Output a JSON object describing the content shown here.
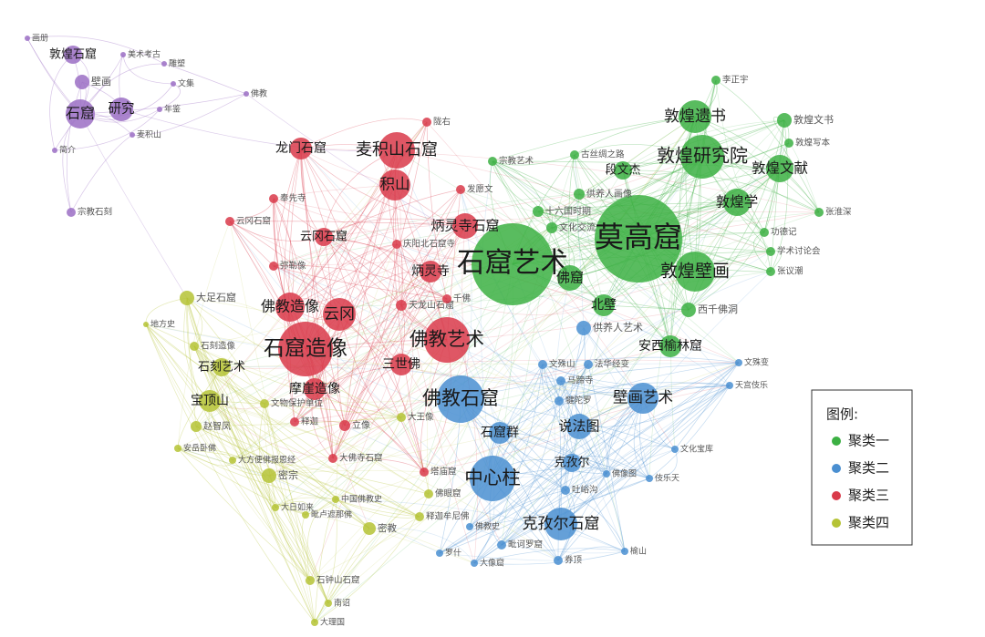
{
  "clusters": [
    {
      "name": "聚类一",
      "color": "#3cb043",
      "nodes": [
        {
          "label": "莫高窟"
        },
        {
          "label": "石窟艺术"
        },
        {
          "label": "敦煌研究院"
        },
        {
          "label": "敦煌遗书"
        },
        {
          "label": "敦煌壁画"
        },
        {
          "label": "敦煌文献"
        },
        {
          "label": "敦煌学"
        },
        {
          "label": "敦煌文书"
        },
        {
          "label": "敦煌写本"
        },
        {
          "label": "段文杰"
        },
        {
          "label": "北壁"
        },
        {
          "label": "佛窟"
        },
        {
          "label": "西千佛洞"
        },
        {
          "label": "安西榆林窟"
        },
        {
          "label": "供养人画像"
        },
        {
          "label": "古丝绸之路"
        },
        {
          "label": "宗教艺术"
        },
        {
          "label": "十六国时期"
        },
        {
          "label": "文化交流"
        },
        {
          "label": "李正宇"
        },
        {
          "label": "张淮深"
        },
        {
          "label": "功德记"
        },
        {
          "label": "学术讨论会"
        },
        {
          "label": "张议潮"
        }
      ]
    },
    {
      "name": "聚类二",
      "color": "#4a8fd1",
      "nodes": [
        {
          "label": "中心柱"
        },
        {
          "label": "佛教石窟"
        },
        {
          "label": "壁画艺术"
        },
        {
          "label": "克孜尔石窟"
        },
        {
          "label": "石窟群"
        },
        {
          "label": "说法图"
        },
        {
          "label": "克孜尔"
        },
        {
          "label": "供养人艺术"
        },
        {
          "label": "文殊山"
        },
        {
          "label": "法华经变"
        },
        {
          "label": "马蹄寺"
        },
        {
          "label": "犍陀罗"
        },
        {
          "label": "吐峪沟"
        },
        {
          "label": "佛教史"
        },
        {
          "label": "毗诃罗窟"
        },
        {
          "label": "券顶"
        },
        {
          "label": "罗什"
        },
        {
          "label": "大像窟"
        },
        {
          "label": "榆山"
        },
        {
          "label": "伎乐天"
        },
        {
          "label": "文化宝库"
        },
        {
          "label": "文殊变"
        },
        {
          "label": "天宫伎乐"
        },
        {
          "label": "佛像图"
        }
      ]
    },
    {
      "name": "聚类三",
      "color": "#d93a4a",
      "nodes": [
        {
          "label": "石窟造像"
        },
        {
          "label": "佛教艺术"
        },
        {
          "label": "云冈"
        },
        {
          "label": "佛教造像"
        },
        {
          "label": "麦积山石窟"
        },
        {
          "label": "积山"
        },
        {
          "label": "龙门石窟"
        },
        {
          "label": "炳灵寺石窟"
        },
        {
          "label": "炳灵寺"
        },
        {
          "label": "云冈石窟"
        },
        {
          "label": "三世佛"
        },
        {
          "label": "摩崖造像"
        },
        {
          "label": "天龙山石窟"
        },
        {
          "label": "千佛"
        },
        {
          "label": "弥勒像"
        },
        {
          "label": "奉先寺"
        },
        {
          "label": "云冈石窟"
        },
        {
          "label": "大佛寺石窟"
        },
        {
          "label": "塔庙窟"
        },
        {
          "label": "立像"
        },
        {
          "label": "释迦"
        },
        {
          "label": "发愿文"
        },
        {
          "label": "庆阳北石窟寺"
        },
        {
          "label": "陇右"
        }
      ]
    },
    {
      "name": "聚类四",
      "color": "#b5c335",
      "nodes": [
        {
          "label": "宝顶山"
        },
        {
          "label": "石刻艺术"
        },
        {
          "label": "大足石窟"
        },
        {
          "label": "石刻造像"
        },
        {
          "label": "赵智凤"
        },
        {
          "label": "地方史"
        },
        {
          "label": "安岳卧佛"
        },
        {
          "label": "大方便佛报恩经"
        },
        {
          "label": "密宗"
        },
        {
          "label": "大日如来"
        },
        {
          "label": "毗卢遮那佛"
        },
        {
          "label": "中国佛教史"
        },
        {
          "label": "密教"
        },
        {
          "label": "石钟山石窟"
        },
        {
          "label": "南诏"
        },
        {
          "label": "大理国"
        },
        {
          "label": "释迦牟尼佛"
        },
        {
          "label": "佛眼窟"
        },
        {
          "label": "文物保护单位"
        },
        {
          "label": "大王像"
        }
      ]
    }
  ],
  "other_nodes": [
    {
      "label": "敦煌石窟"
    },
    {
      "label": "壁画"
    },
    {
      "label": "石窟"
    },
    {
      "label": "研究"
    },
    {
      "label": "画册"
    },
    {
      "label": "美术考古"
    },
    {
      "label": "雕塑"
    },
    {
      "label": "文集"
    },
    {
      "label": "佛教"
    },
    {
      "label": "年鉴"
    },
    {
      "label": "麦积山"
    },
    {
      "label": "简介"
    },
    {
      "label": "宗教石刻"
    }
  ],
  "legend": {
    "title": "图例:"
  }
}
